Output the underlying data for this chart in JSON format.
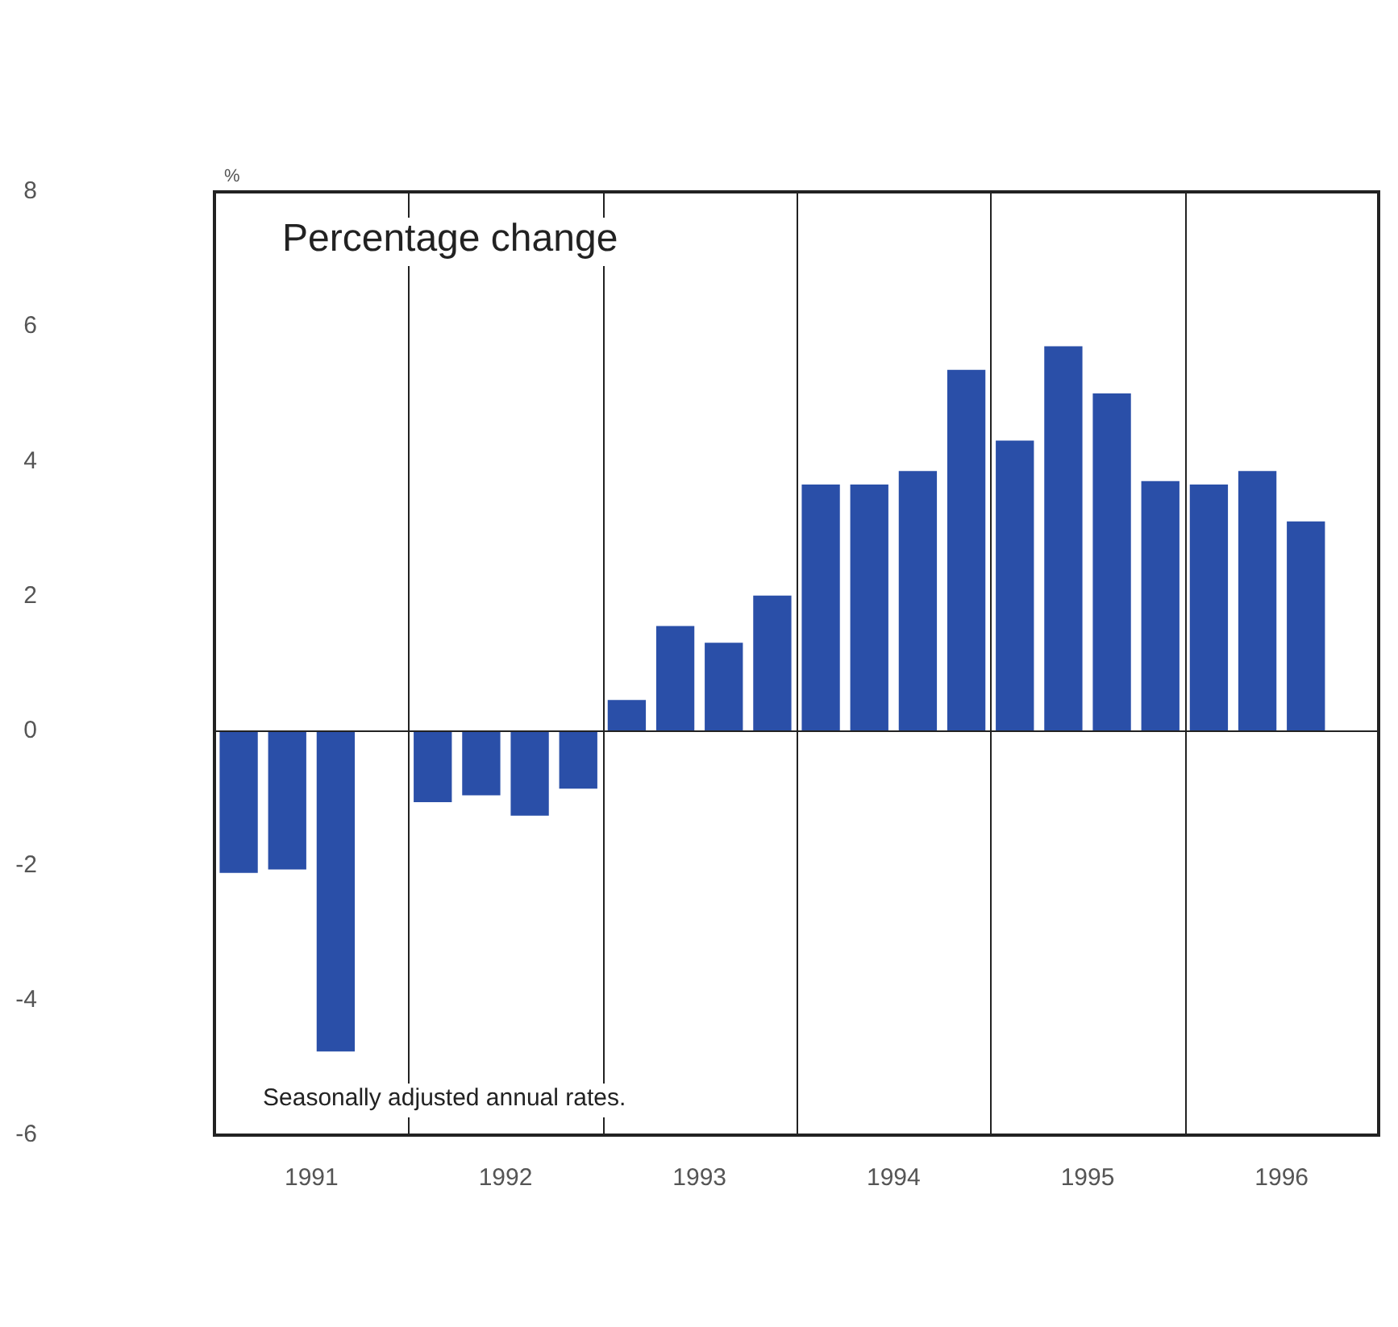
{
  "chart_data": {
    "type": "bar",
    "title": "Percentage change",
    "ylabel": "%",
    "annotations": [
      "Seasonally adjusted annual rates."
    ],
    "x": [
      1991.125,
      1991.375,
      1991.625,
      1991.875,
      1992.125,
      1992.375,
      1992.625,
      1992.875,
      1993.125,
      1993.375,
      1993.625,
      1993.875,
      1994.125,
      1994.375,
      1994.625,
      1994.875,
      1995.125,
      1995.375,
      1995.625,
      1995.875,
      1996.125,
      1996.375,
      1996.625
    ],
    "values": [
      -2.1,
      -2.05,
      -4.75,
      0,
      -1.05,
      -0.95,
      -1.25,
      -0.85,
      0.45,
      1.55,
      1.3,
      2.0,
      3.65,
      3.65,
      3.85,
      5.35,
      4.3,
      5.7,
      5.0,
      3.7,
      3.65,
      3.85,
      3.1
    ],
    "color": "#2a4fa8",
    "xlim": [
      1991,
      1997
    ],
    "xticks": [
      {
        "value": 1991.5,
        "label": "1991"
      },
      {
        "value": 1992.5,
        "label": "1992"
      },
      {
        "value": 1993.5,
        "label": "1993"
      },
      {
        "value": 1994.5,
        "label": "1994"
      },
      {
        "value": 1995.5,
        "label": "1995"
      },
      {
        "value": 1996.5,
        "label": "1996"
      }
    ],
    "ylim": [
      -6,
      8
    ],
    "yticks": [
      -6,
      -4,
      -2,
      0,
      2,
      4,
      6,
      8
    ],
    "grid": false,
    "legend": false,
    "ref_lines": [
      {
        "axis": "y",
        "value": 0
      },
      {
        "axis": "x",
        "value": 1992
      },
      {
        "axis": "x",
        "value": 1993
      },
      {
        "axis": "x",
        "value": 1994
      },
      {
        "axis": "x",
        "value": 1995
      },
      {
        "axis": "x",
        "value": 1996
      }
    ]
  }
}
